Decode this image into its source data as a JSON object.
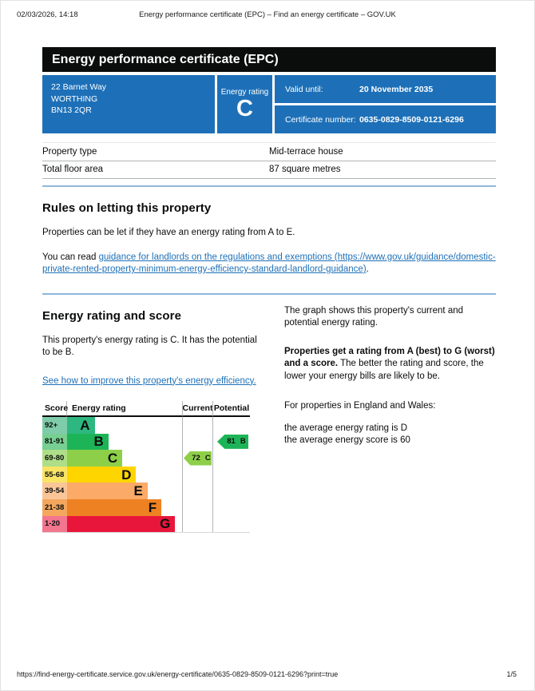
{
  "print_header": {
    "datetime": "02/03/2026, 14:18",
    "title": "Energy performance certificate (EPC) – Find an energy certificate – GOV.UK"
  },
  "banner": {
    "title": "Energy performance certificate (EPC)"
  },
  "summary": {
    "accent_color": "#1d70b8",
    "address_lines": [
      "22 Barnet Way",
      "WORTHING",
      "BN13 2QR"
    ],
    "energy_rating_label": "Energy rating",
    "energy_rating": "C",
    "valid_until_label": "Valid until:",
    "valid_until_value": "20 November 2035",
    "certificate_number_label": "Certificate number:",
    "certificate_number_value": "0635-0829-8509-0121-6296"
  },
  "property_table": {
    "rows": [
      {
        "label": "Property type",
        "value": "Mid-terrace house"
      },
      {
        "label": "Total floor area",
        "value": "87 square metres"
      }
    ]
  },
  "rules_section": {
    "heading": "Rules on letting this property",
    "paragraph1": "Properties can be let if they have an energy rating from A to E.",
    "paragraph2_prefix": "You can read ",
    "paragraph2_link": "guidance for landlords on the regulations and exemptions (https://www.gov.uk/guidance/domestic-private-rented-property-minimum-energy-efficiency-standard-landlord-guidance)",
    "paragraph2_suffix": "."
  },
  "rating_section": {
    "heading": "Energy rating and score",
    "paragraph1": "This property's energy rating is C. It has the potential to be B.",
    "improve_link": "See how to improve this property's energy efficiency.",
    "right": {
      "paragraph1": "The graph shows this property's current and potential energy rating.",
      "paragraph2_bold": "Properties get a rating from A (best) to G (worst) and a score.",
      "paragraph2_rest": " The better the rating and score, the lower your energy bills are likely to be.",
      "paragraph3": "For properties in England and Wales:",
      "average_rating_line": "the average energy rating is D",
      "average_score_line": "the average energy score is 60"
    }
  },
  "chart_data": {
    "type": "epc-band-chart",
    "headers": {
      "score": "Score",
      "rating": "Energy rating",
      "current": "Current",
      "potential": "Potential"
    },
    "bands": [
      {
        "range": "92+",
        "letter": "A",
        "color": "#2eb880",
        "tint": "#7fccaa",
        "bar_pct": 24
      },
      {
        "range": "81-91",
        "letter": "B",
        "color": "#1db457",
        "tint": "#77cf92",
        "bar_pct": 36
      },
      {
        "range": "69-80",
        "letter": "C",
        "color": "#8ecf49",
        "tint": "#aede87",
        "bar_pct": 48
      },
      {
        "range": "55-68",
        "letter": "D",
        "color": "#ffd500",
        "tint": "#f9e464",
        "bar_pct": 60
      },
      {
        "range": "39-54",
        "letter": "E",
        "color": "#fbaa67",
        "tint": "#fac697",
        "bar_pct": 70
      },
      {
        "range": "21-38",
        "letter": "F",
        "color": "#ee8122",
        "tint": "#f4a65e",
        "bar_pct": 82
      },
      {
        "range": "1-20",
        "letter": "G",
        "color": "#e9163c",
        "tint": "#f3758e",
        "bar_pct": 94
      }
    ],
    "current": {
      "score": "72",
      "letter": "C",
      "band_index": 2,
      "color": "#8ecf49"
    },
    "potential": {
      "score": "81",
      "letter": "B",
      "band_index": 1,
      "color": "#1db457"
    }
  },
  "footer": {
    "url": "https://find-energy-certificate.service.gov.uk/energy-certificate/0635-0829-8509-0121-6296?print=true",
    "page": "1/5"
  }
}
